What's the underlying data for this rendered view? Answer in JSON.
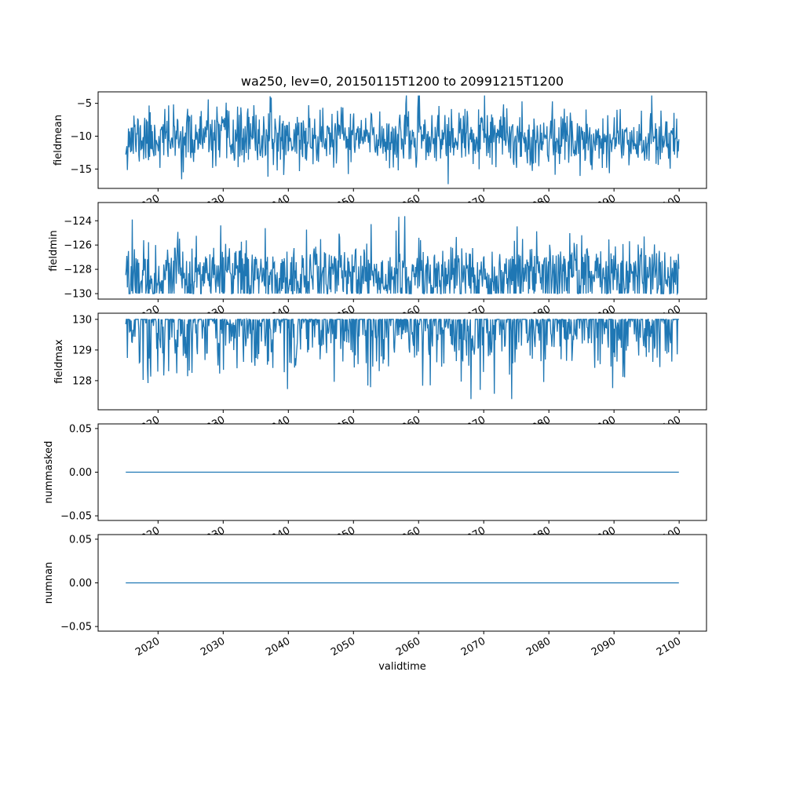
{
  "figure": {
    "title": "wa250, lev=0, 20150115T1200 to 20991215T1200",
    "xlabel": "validtime",
    "background_color": "#ffffff",
    "frame_color": "#000000"
  },
  "chart_data": {
    "type": "line",
    "title": "wa250, lev=0, 20150115T1200 to 20991215T1200",
    "xlabel": "validtime",
    "line_color": "#1f77b4",
    "legend": "none",
    "grid": false,
    "x": {
      "label": "validtime",
      "start": 2015.0417,
      "end": 2099.9583,
      "n": 1020,
      "lim": [
        2010.8,
        2104.2
      ],
      "tick_label_rotation_deg": 30,
      "ticks": [
        {
          "v": 2020,
          "label": "2020"
        },
        {
          "v": 2030,
          "label": "2030"
        },
        {
          "v": 2040,
          "label": "2040"
        },
        {
          "v": 2050,
          "label": "2050"
        },
        {
          "v": 2060,
          "label": "2060"
        },
        {
          "v": 2070,
          "label": "2070"
        },
        {
          "v": 2080,
          "label": "2080"
        },
        {
          "v": 2090,
          "label": "2090"
        },
        {
          "v": 2100,
          "label": "2100"
        }
      ]
    },
    "subplots": [
      {
        "ylabel": "fieldmean",
        "ylim": [
          -17.95,
          -3.25
        ],
        "yticks": [
          {
            "v": -5,
            "label": "−5"
          },
          {
            "v": -10,
            "label": "−10"
          },
          {
            "v": -15,
            "label": "−15"
          }
        ],
        "series": {
          "name": "fieldmean",
          "kind": "noise",
          "mean": -10.3,
          "std": 2.2,
          "clip": [
            -17.3,
            -3.8
          ],
          "observed_range": [
            -17.3,
            -3.8
          ],
          "seed": 11
        }
      },
      {
        "ylabel": "fieldmin",
        "ylim": [
          -130.45,
          -122.5
        ],
        "yticks": [
          {
            "v": -124,
            "label": "−124"
          },
          {
            "v": -126,
            "label": "−126"
          },
          {
            "v": -128,
            "label": "−128"
          },
          {
            "v": -130,
            "label": "−130"
          }
        ],
        "series": {
          "name": "fieldmin",
          "kind": "noise",
          "mean": -128.6,
          "std": 1.5,
          "clip": [
            -130.0,
            -123.4
          ],
          "observed_range": [
            -130.0,
            -123.4
          ],
          "seed": 22
        }
      },
      {
        "ylabel": "fieldmax",
        "ylim": [
          127.05,
          130.2
        ],
        "yticks": [
          {
            "v": 128,
            "label": "128"
          },
          {
            "v": 129,
            "label": "129"
          },
          {
            "v": 130,
            "label": "130"
          }
        ],
        "series": {
          "name": "fieldmax",
          "kind": "noise",
          "mean": 129.9,
          "std": 0.85,
          "clip": [
            127.4,
            130.0
          ],
          "observed_range": [
            127.4,
            130.0
          ],
          "seed": 33
        }
      },
      {
        "ylabel": "nummasked",
        "ylim": [
          -0.0553,
          0.0553
        ],
        "yticks": [
          {
            "v": 0.05,
            "label": "0.05"
          },
          {
            "v": 0.0,
            "label": "0.00"
          },
          {
            "v": -0.05,
            "label": "−0.05"
          }
        ],
        "series": {
          "name": "nummasked",
          "kind": "constant",
          "value": 0.0
        }
      },
      {
        "ylabel": "numnan",
        "ylim": [
          -0.0553,
          0.0553
        ],
        "yticks": [
          {
            "v": 0.05,
            "label": "0.05"
          },
          {
            "v": 0.0,
            "label": "0.00"
          },
          {
            "v": -0.05,
            "label": "−0.05"
          }
        ],
        "series": {
          "name": "numnan",
          "kind": "constant",
          "value": 0.0
        }
      }
    ]
  }
}
